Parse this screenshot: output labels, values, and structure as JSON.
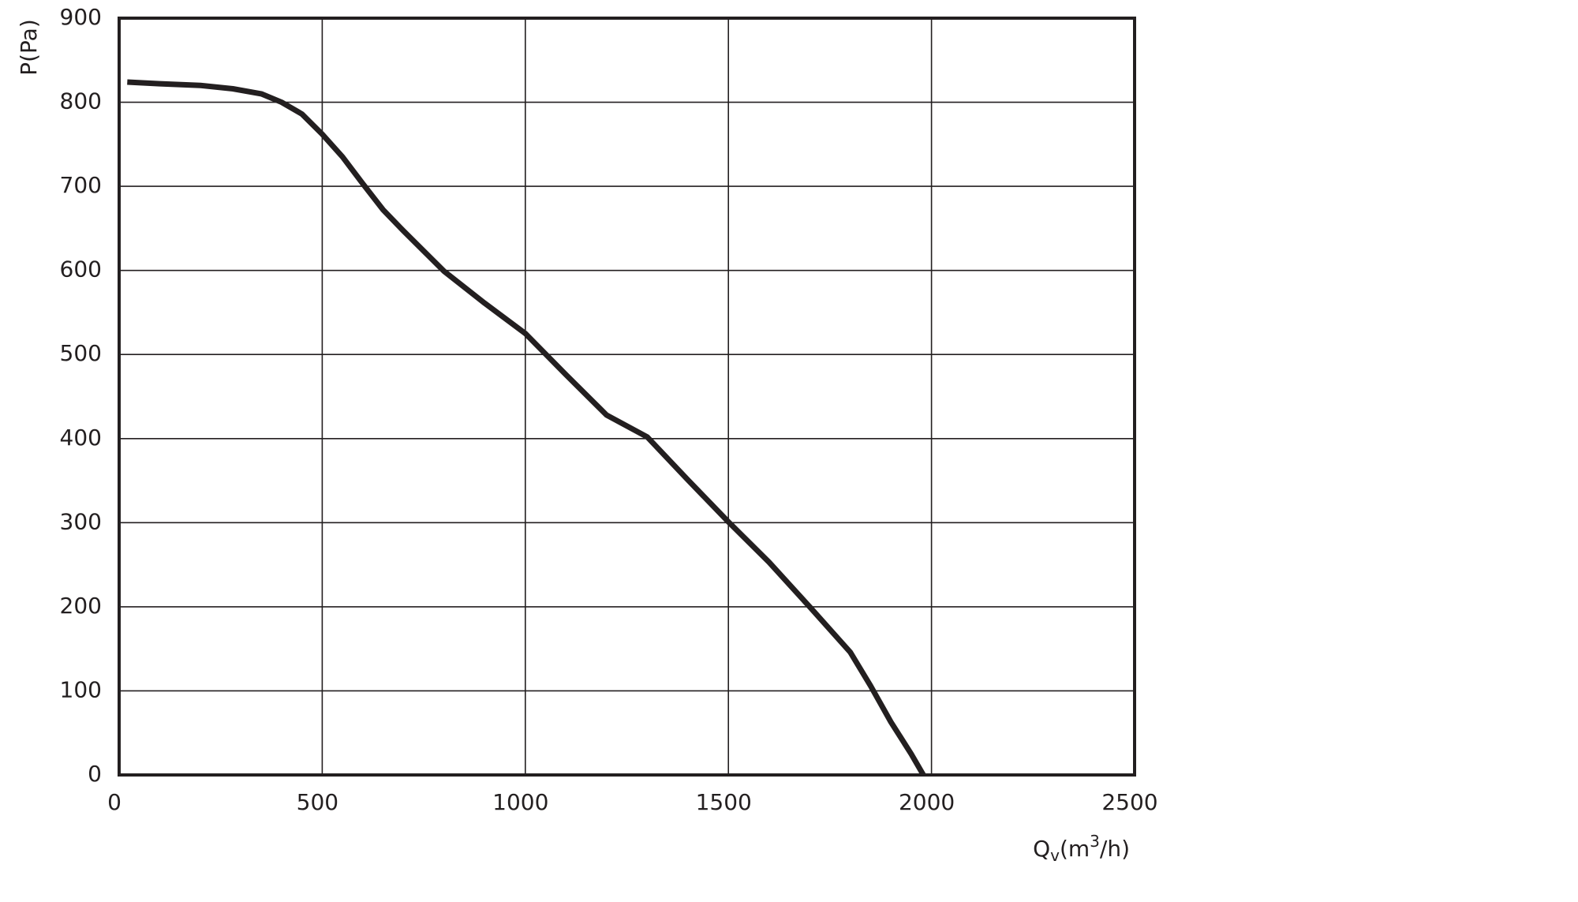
{
  "chart_data": {
    "type": "line",
    "y_label": "P(Pa)",
    "x_label_parts": [
      "Q",
      "v",
      "(m",
      "3",
      "/h)"
    ],
    "x": [
      20,
      100,
      200,
      280,
      350,
      400,
      450,
      500,
      550,
      600,
      650,
      700,
      800,
      900,
      1000,
      1100,
      1200,
      1300,
      1400,
      1500,
      1600,
      1700,
      1800,
      1850,
      1900,
      1950,
      1980
    ],
    "series": [
      {
        "color": "#231f20",
        "values": [
          824,
          822,
          820,
          816,
          810,
          800,
          786,
          762,
          735,
          703,
          672,
          647,
          599,
          561,
          525,
          476,
          428,
          402,
          351,
          301,
          253,
          200,
          146,
          106,
          63,
          25,
          0
        ]
      }
    ],
    "xlim": [
      0,
      2500
    ],
    "xticks": [
      0,
      500,
      1000,
      1500,
      2000,
      2500
    ],
    "ylim": [
      0,
      900
    ],
    "yticks": [
      0,
      100,
      200,
      300,
      400,
      500,
      600,
      700,
      800,
      900
    ],
    "grid": true
  }
}
